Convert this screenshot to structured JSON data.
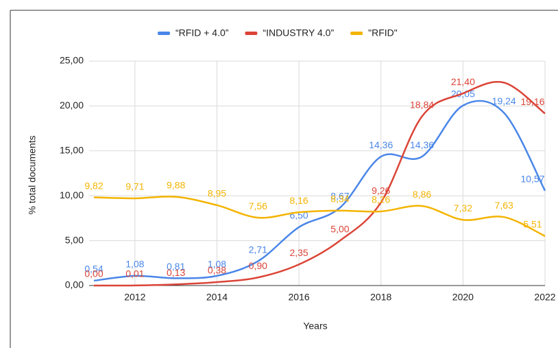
{
  "chart_data": {
    "type": "line",
    "x_label": "Years",
    "y_label": "% total documents",
    "x": [
      2011,
      2012,
      2013,
      2014,
      2015,
      2016,
      2017,
      2018,
      2019,
      2020,
      2021,
      2022
    ],
    "series": [
      {
        "name": "“RFID + 4.0”",
        "color": "#4a86e8",
        "values": [
          0.54,
          1.08,
          0.81,
          1.08,
          2.71,
          6.5,
          8.67,
          14.36,
          14.36,
          20.05,
          19.24,
          10.57
        ],
        "value_labels": [
          "0,54",
          "1,08",
          "0,81",
          "1,08",
          "2,71",
          "6,50",
          "8,67",
          "14,36",
          "14,36",
          "20,05",
          "19,24",
          "10,57"
        ]
      },
      {
        "name": "“INDUSTRY 4.0”",
        "color": "#db4437",
        "values": [
          0.0,
          0.01,
          0.13,
          0.38,
          0.9,
          2.35,
          5.0,
          9.26,
          18.84,
          21.4,
          22.6,
          19.16
        ],
        "value_labels": [
          "0,00",
          "0,01",
          "0,13",
          "0,38",
          "0,90",
          "2,35",
          "5,00",
          "9,26",
          "18,84",
          "21,40",
          null,
          "19,16"
        ]
      },
      {
        "name": "\"RFID\"",
        "color": "#f4b400",
        "values": [
          9.82,
          9.71,
          9.88,
          8.95,
          7.56,
          8.16,
          8.34,
          8.26,
          8.86,
          7.32,
          7.63,
          5.51
        ],
        "value_labels": [
          "9,82",
          "9,71",
          "9,88",
          "8,95",
          "7,56",
          "8,16",
          "8,34",
          "8,26",
          "8,86",
          "7,32",
          "7,63",
          "5,51"
        ]
      }
    ],
    "xlim": [
      2011,
      2022
    ],
    "xticks": [
      2012,
      2014,
      2016,
      2018,
      2020,
      2022
    ],
    "ylim": [
      0,
      25
    ],
    "yticks": [
      {
        "value": 0,
        "label": "0,00"
      },
      {
        "value": 5,
        "label": "5,00"
      },
      {
        "value": 10,
        "label": "10,00"
      },
      {
        "value": 15,
        "label": "15,00"
      },
      {
        "value": 20,
        "label": "20,00"
      },
      {
        "value": 25,
        "label": "25,00"
      }
    ],
    "grid": true,
    "legend": "top"
  }
}
